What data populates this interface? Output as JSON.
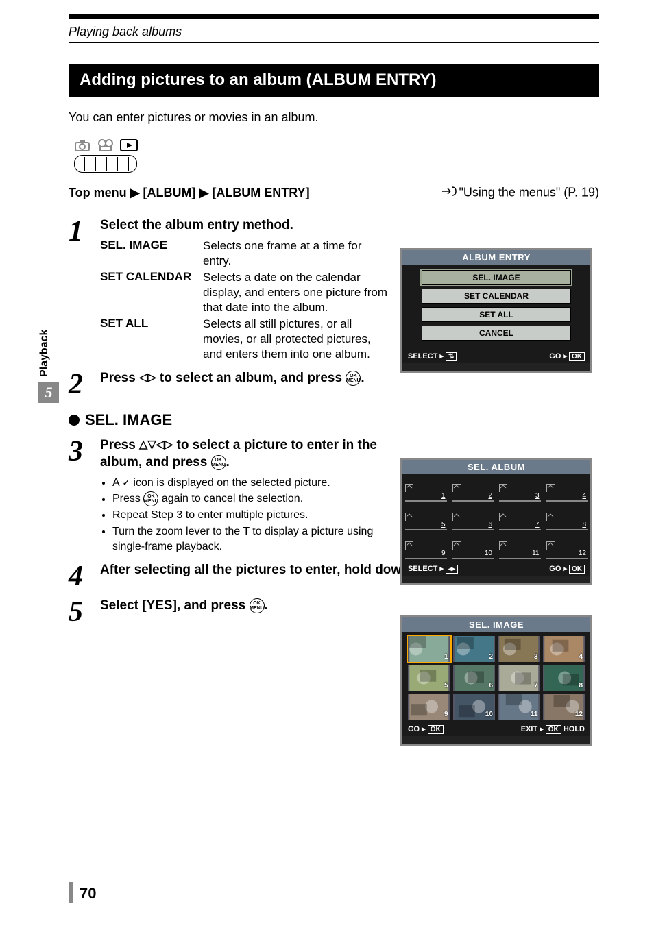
{
  "header": {
    "breadcrumb": "Playing back albums"
  },
  "title": "Adding pictures to an album (ALBUM ENTRY)",
  "intro": "You can enter pictures or movies in an album.",
  "nav": {
    "path": "Top menu ▶ [ALBUM] ▶ [ALBUM ENTRY]",
    "ref": "\"Using the menus\" (P. 19)"
  },
  "side": {
    "chapter": "5",
    "label": "Playback"
  },
  "steps": {
    "s1": {
      "num": "1",
      "title": "Select the album entry method.",
      "defs": [
        {
          "label": "SEL. IMAGE",
          "desc": "Selects one frame at a time for entry."
        },
        {
          "label": "SET CALENDAR",
          "desc": "Selects a date on the calendar display, and enters one picture from that date into the album."
        },
        {
          "label": "SET ALL",
          "desc": "Selects all still pictures, or all movies, or all protected pictures, and enters them into one album."
        }
      ]
    },
    "s2": {
      "num": "2",
      "title_a": "Press ",
      "title_b": " to select an album, and press ",
      "title_c": "."
    },
    "sub": "SEL. IMAGE",
    "s3": {
      "num": "3",
      "title_a": "Press ",
      "title_b": " to select a picture to enter in the album, and press ",
      "title_c": ".",
      "bullets": [
        "A ✓ icon is displayed on the selected picture.",
        "Press OK/MENU again to cancel the selection.",
        "Repeat Step 3 to enter multiple pictures.",
        "Turn the zoom lever to the T to display a picture using single-frame playback."
      ]
    },
    "s4": {
      "num": "4",
      "title_a": "After selecting all the pictures to enter, hold down ",
      "title_b": "."
    },
    "s5": {
      "num": "5",
      "title_a": "Select [YES], and press ",
      "title_b": "."
    }
  },
  "lcd1": {
    "title": "ALBUM ENTRY",
    "items": [
      "SEL. IMAGE",
      "SET CALENDAR",
      "SET ALL",
      "CANCEL"
    ],
    "footer_l": "SELECT",
    "footer_r": "GO",
    "ok": "OK"
  },
  "lcd2": {
    "title": "SEL. ALBUM",
    "slots": [
      "1",
      "2",
      "3",
      "4",
      "5",
      "6",
      "7",
      "8",
      "9",
      "10",
      "11",
      "12"
    ],
    "footer_l": "SELECT",
    "footer_r": "GO",
    "ok": "OK"
  },
  "lcd3": {
    "title": "SEL. IMAGE",
    "thumbs": [
      "1",
      "2",
      "3",
      "4",
      "5",
      "6",
      "7",
      "8",
      "9",
      "10",
      "11",
      "12"
    ],
    "footer_go": "GO",
    "footer_exit": "EXIT",
    "footer_hold": "HOLD",
    "ok": "OK"
  },
  "page_number": "70"
}
